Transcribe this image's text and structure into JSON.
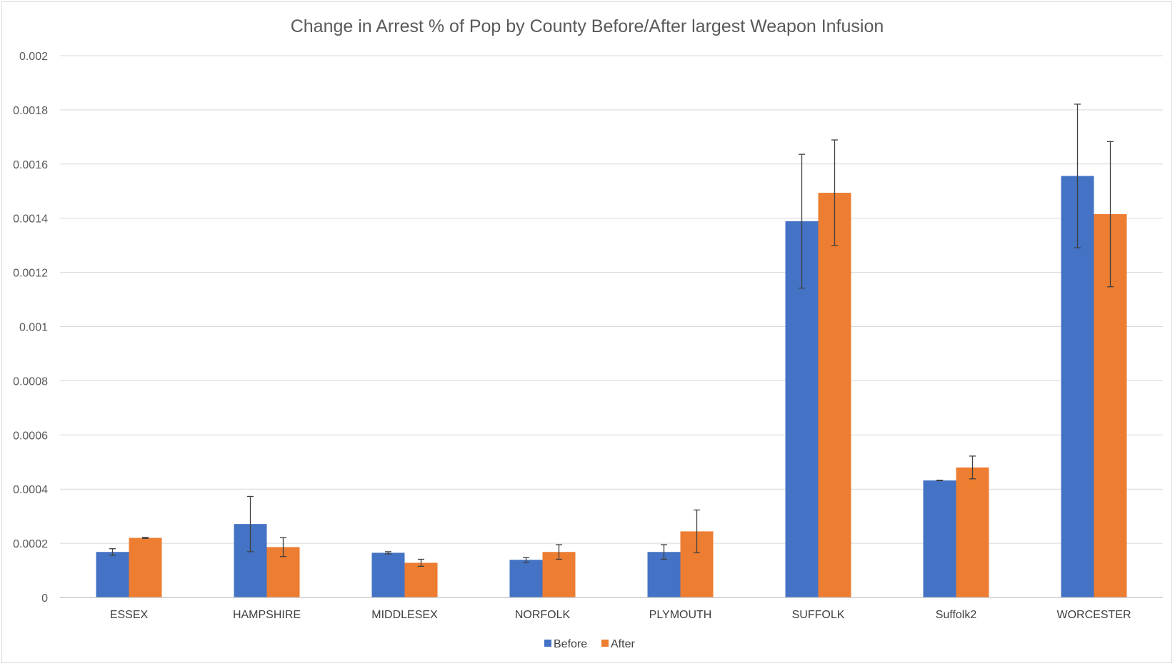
{
  "chart_data": {
    "type": "bar",
    "title": "Change in Arrest % of Pop by County Before/After largest Weapon Infusion",
    "xlabel": "",
    "ylabel": "",
    "ylim": [
      0,
      0.002
    ],
    "yticks": [
      0,
      0.0002,
      0.0004,
      0.0006,
      0.0008,
      0.001,
      0.0012,
      0.0014,
      0.0016,
      0.0018,
      0.002
    ],
    "ytick_labels": [
      "0",
      "0.0002",
      "0.0004",
      "0.0006",
      "0.0008",
      "0.001",
      "0.0012",
      "0.0014",
      "0.0016",
      "0.0018",
      "0.002"
    ],
    "grid": true,
    "legend_position": "bottom",
    "categories": [
      "ESSEX",
      "HAMPSHIRE",
      "MIDDLESEX",
      "NORFOLK",
      "PLYMOUTH",
      "SUFFOLK",
      "Suffolk2",
      "WORCESTER"
    ],
    "series": [
      {
        "name": "Before",
        "color": "#4472c4",
        "values": [
          0.000168,
          0.000271,
          0.000165,
          0.000139,
          0.000168,
          0.001389,
          0.000432,
          0.001556
        ],
        "error": [
          1.2e-05,
          0.000102,
          4e-06,
          9e-06,
          2.7e-05,
          0.000247,
          1e-06,
          0.000265
        ]
      },
      {
        "name": "After",
        "color": "#ed7d31",
        "values": [
          0.00022,
          0.000186,
          0.000128,
          0.000168,
          0.000244,
          0.001494,
          0.00048,
          0.001415
        ],
        "error": [
          2e-06,
          3.5e-05,
          1.3e-05,
          2.7e-05,
          7.9e-05,
          0.000195,
          4.2e-05,
          0.000268
        ]
      }
    ]
  }
}
